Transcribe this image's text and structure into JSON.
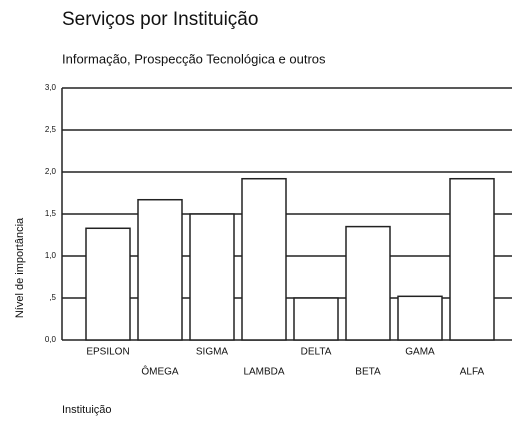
{
  "chart_data": {
    "type": "bar",
    "title": "Serviços por Instituição",
    "subtitle": "Informação, Prospecção Tecnológica e outros",
    "y_label": "Nível de importância",
    "x_label": "Instituição",
    "categories": [
      "EPSILON",
      "ÔMEGA",
      "SIGMA",
      "LAMBDA",
      "DELTA",
      "BETA",
      "GAMA",
      "ALFA"
    ],
    "values": [
      1.33,
      1.67,
      1.5,
      1.92,
      0.5,
      1.35,
      0.52,
      1.92
    ],
    "color": "#ffffff",
    "ylim": [
      0,
      3
    ],
    "yticks": [
      {
        "value": 0,
        "label": "0,0"
      },
      {
        "value": 0.5,
        "label": ",5"
      },
      {
        "value": 1,
        "label": "1,0"
      },
      {
        "value": 1.5,
        "label": "1,5"
      },
      {
        "value": 2,
        "label": "2,0"
      },
      {
        "value": 2.5,
        "label": "2,5"
      },
      {
        "value": 3,
        "label": "3,0"
      }
    ],
    "grid": true
  }
}
